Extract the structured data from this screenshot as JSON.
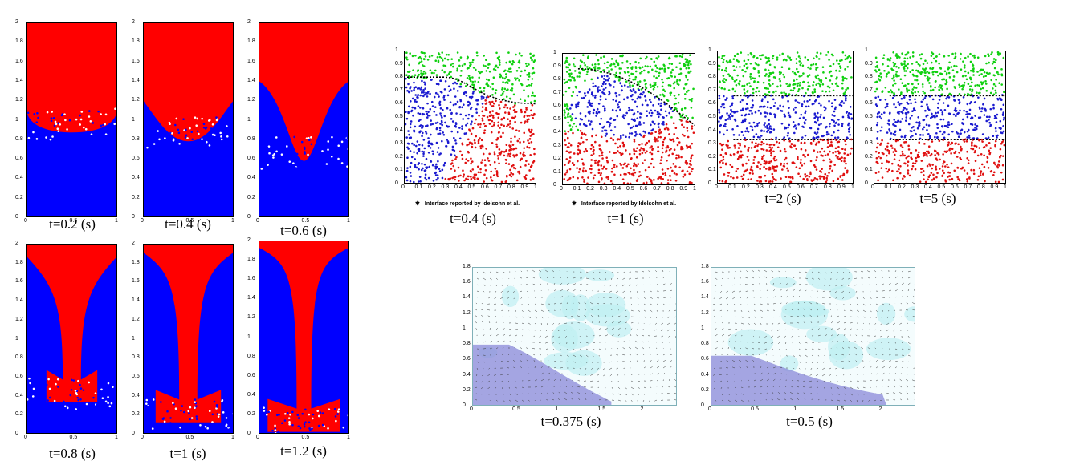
{
  "rayleigh_taylor": {
    "x_ticks": [
      "0",
      "0.5",
      "1"
    ],
    "y_ticks": [
      "2",
      "1.8",
      "1.6",
      "1.4",
      "1.2",
      "1",
      "0.8",
      "0.6",
      "0.4",
      "0.2",
      "0"
    ],
    "colors": {
      "heavy_fluid": "#ff0000",
      "light_fluid": "#0000ff"
    },
    "snapshots": [
      {
        "caption": "t=0.2 (s)",
        "interface_depth": 0.87
      },
      {
        "caption": "t=0.4 (s)",
        "interface_depth": 0.78
      },
      {
        "caption": "t=0.6 (s)",
        "interface_depth": 0.58
      },
      {
        "caption": "t=0.8 (s)",
        "interface_depth": 0.33
      },
      {
        "caption": "t=1 (s)",
        "interface_depth": 0.12
      },
      {
        "caption": "t=1.2 (s)",
        "interface_depth": 0.02
      }
    ]
  },
  "three_fluid": {
    "x_ticks": [
      "0",
      "0.1",
      "0.2",
      "0.3",
      "0.4",
      "0.5",
      "0.6",
      "0.7",
      "0.8",
      "0.9",
      "1"
    ],
    "y_ticks": [
      "1",
      "0.9",
      "0.8",
      "0.7",
      "0.6",
      "0.5",
      "0.4",
      "0.3",
      "0.2",
      "0.1",
      "0"
    ],
    "legend": "Interface reported by Idelsohn et al.",
    "colors": {
      "top": "#10d010",
      "middle": "#1a1ad0",
      "bottom": "#e01010",
      "reference": "#000000"
    },
    "snapshots": [
      {
        "caption": "t=0.4 (s)"
      },
      {
        "caption": "t=1 (s)"
      },
      {
        "caption": "t=2 (s)"
      },
      {
        "caption": "t=5 (s)"
      }
    ]
  },
  "dam_break": {
    "x_ticks": [
      "0",
      "0.5",
      "1",
      "1.5",
      "2"
    ],
    "y_ticks": [
      "1.8",
      "1.6",
      "1.4",
      "1.2",
      "1",
      "0.8",
      "0.6",
      "0.4",
      "0.2",
      "0"
    ],
    "colors": {
      "water": "#8a88d8",
      "air": "#bff0f2"
    },
    "snapshots": [
      {
        "caption": "t=0.375 (s)"
      },
      {
        "caption": "t=0.5 (s)"
      }
    ]
  }
}
